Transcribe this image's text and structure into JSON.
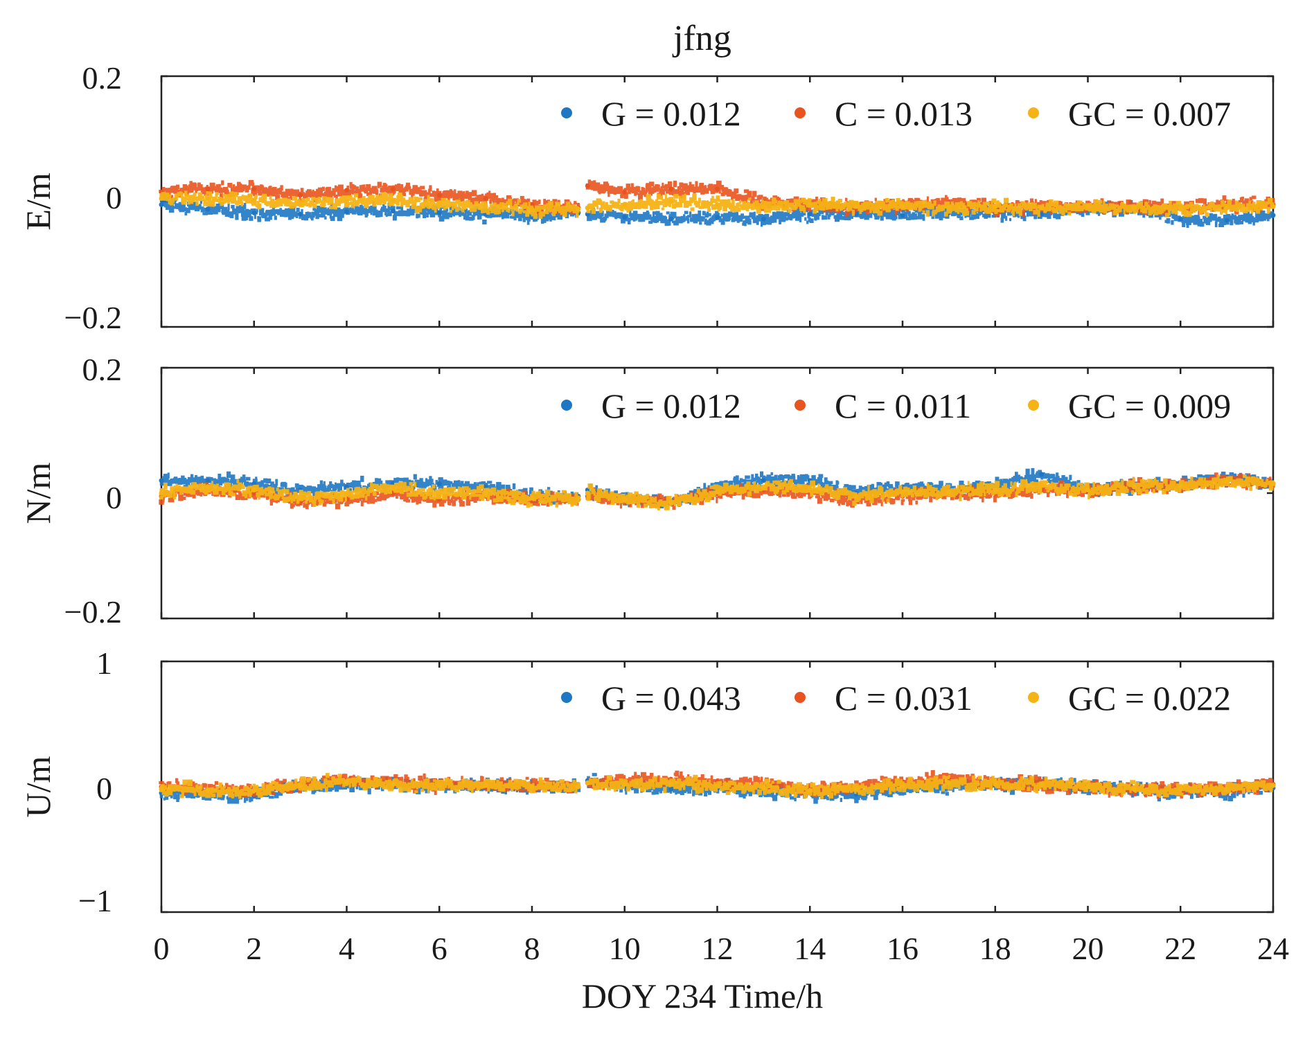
{
  "chart_data": {
    "type": "scatter",
    "title": "jfng",
    "xlabel": "DOY 234 Time/h",
    "xlim": [
      0,
      24
    ],
    "x_ticks": [
      "0",
      "2",
      "4",
      "6",
      "8",
      "10",
      "12",
      "14",
      "16",
      "18",
      "20",
      "22",
      "24"
    ],
    "colors": {
      "G": "#1f77c4",
      "C": "#e8541f",
      "GC": "#f5b316"
    },
    "data_gap_hours": [
      9.0,
      9.2
    ],
    "panels": [
      {
        "ylabel": "E/m",
        "ylim": [
          -0.2,
          0.2
        ],
        "y_ticks": [
          "0.2",
          "0",
          "−0.2"
        ],
        "legend": [
          "G = 0.012",
          "C = 0.013",
          "GC = 0.007"
        ],
        "series": [
          {
            "name": "G",
            "x": [
              0,
              1,
              2,
              3,
              4,
              5,
              6,
              7,
              8,
              9,
              9.2,
              10,
              11,
              12,
              13,
              14,
              15,
              16,
              17,
              18,
              19,
              20,
              21,
              22,
              23,
              24
            ],
            "values": [
              -0.005,
              -0.012,
              -0.018,
              -0.02,
              -0.016,
              -0.015,
              -0.018,
              -0.02,
              -0.025,
              -0.018,
              -0.02,
              -0.025,
              -0.028,
              -0.025,
              -0.028,
              -0.02,
              -0.02,
              -0.022,
              -0.018,
              -0.018,
              -0.02,
              -0.012,
              -0.01,
              -0.028,
              -0.03,
              -0.022
            ]
          },
          {
            "name": "C",
            "x": [
              0,
              1,
              2,
              3,
              4,
              5,
              6,
              7,
              8,
              9,
              9.2,
              10,
              11,
              12,
              13,
              14,
              15,
              16,
              17,
              18,
              19,
              20,
              21,
              22,
              23,
              24
            ],
            "values": [
              0.015,
              0.02,
              0.02,
              0.01,
              0.018,
              0.02,
              0.01,
              0.005,
              -0.005,
              -0.01,
              0.025,
              0.015,
              0.02,
              0.02,
              0.0,
              -0.005,
              -0.01,
              -0.005,
              -0.002,
              -0.01,
              -0.008,
              -0.008,
              -0.01,
              -0.01,
              -0.005,
              -0.005
            ]
          },
          {
            "name": "GC",
            "x": [
              0,
              1,
              2,
              3,
              4,
              5,
              6,
              7,
              8,
              9,
              9.2,
              10,
              11,
              12,
              13,
              14,
              15,
              16,
              17,
              18,
              19,
              20,
              21,
              22,
              23,
              24
            ],
            "values": [
              0.005,
              0.005,
              0.002,
              -0.005,
              0.0,
              0.002,
              -0.005,
              -0.008,
              -0.012,
              -0.012,
              -0.01,
              -0.005,
              0.0,
              -0.005,
              -0.008,
              -0.005,
              -0.008,
              -0.008,
              -0.01,
              -0.008,
              -0.01,
              -0.008,
              -0.01,
              -0.012,
              -0.01,
              -0.008
            ]
          }
        ]
      },
      {
        "ylabel": "N/m",
        "ylim": [
          -0.2,
          0.2
        ],
        "y_ticks": [
          "0.2",
          "0",
          "−0.2"
        ],
        "legend": [
          "G = 0.012",
          "C = 0.011",
          "GC = 0.009"
        ],
        "series": [
          {
            "name": "G",
            "x": [
              0,
              1,
              2,
              3,
              4,
              5,
              6,
              7,
              8,
              9,
              9.2,
              10,
              11,
              12,
              13,
              14,
              15,
              16,
              17,
              18,
              19,
              20,
              21,
              22,
              23,
              24
            ],
            "values": [
              0.02,
              0.02,
              0.015,
              0.005,
              0.01,
              0.015,
              0.015,
              0.01,
              -0.005,
              -0.005,
              0.005,
              -0.01,
              -0.015,
              0.01,
              0.02,
              0.02,
              0.0,
              0.01,
              0.005,
              0.01,
              0.03,
              0.005,
              0.01,
              0.015,
              0.025,
              0.015
            ]
          },
          {
            "name": "C",
            "x": [
              0,
              1,
              2,
              3,
              4,
              5,
              6,
              7,
              8,
              9,
              9.2,
              10,
              11,
              12,
              13,
              14,
              15,
              16,
              17,
              18,
              19,
              20,
              21,
              22,
              23,
              24
            ],
            "values": [
              -0.005,
              0.005,
              0.0,
              -0.015,
              -0.01,
              0.0,
              -0.01,
              -0.005,
              -0.01,
              -0.01,
              -0.005,
              -0.01,
              -0.015,
              0.0,
              0.005,
              0.0,
              -0.01,
              -0.005,
              0.0,
              0.0,
              0.005,
              0.005,
              0.01,
              0.01,
              0.02,
              0.015
            ]
          },
          {
            "name": "GC",
            "x": [
              0,
              1,
              2,
              3,
              4,
              5,
              6,
              7,
              8,
              9,
              9.2,
              10,
              11,
              12,
              13,
              14,
              15,
              16,
              17,
              18,
              19,
              20,
              21,
              22,
              23,
              24
            ],
            "values": [
              0.0,
              0.01,
              0.005,
              -0.008,
              -0.002,
              0.008,
              0.0,
              0.0,
              -0.008,
              -0.008,
              0.0,
              -0.01,
              -0.015,
              0.002,
              0.01,
              0.008,
              -0.005,
              0.002,
              0.002,
              0.004,
              0.012,
              0.005,
              0.01,
              0.012,
              0.018,
              0.015
            ]
          }
        ]
      },
      {
        "ylabel": "U/m",
        "ylim": [
          -1,
          1
        ],
        "y_ticks": [
          "1",
          "0",
          "−1"
        ],
        "legend": [
          "G = 0.043",
          "C = 0.031",
          "GC = 0.022"
        ],
        "series": [
          {
            "name": "G",
            "x": [
              0,
              1,
              2,
              3,
              4,
              5,
              6,
              7,
              8,
              9,
              9.2,
              10,
              11,
              12,
              13,
              14,
              15,
              16,
              17,
              18,
              19,
              20,
              21,
              22,
              23,
              24
            ],
            "values": [
              -0.05,
              -0.06,
              -0.07,
              0.0,
              0.03,
              0.02,
              0.01,
              0.0,
              0.0,
              0.0,
              0.05,
              0.0,
              -0.02,
              -0.01,
              -0.04,
              -0.05,
              -0.06,
              -0.02,
              0.0,
              0.02,
              0.03,
              -0.01,
              -0.02,
              -0.04,
              -0.04,
              -0.01
            ]
          },
          {
            "name": "C",
            "x": [
              0,
              1,
              2,
              3,
              4,
              5,
              6,
              7,
              8,
              9,
              9.2,
              10,
              11,
              12,
              13,
              14,
              15,
              16,
              17,
              18,
              19,
              20,
              21,
              22,
              23,
              24
            ],
            "values": [
              0.0,
              -0.02,
              -0.03,
              0.02,
              0.05,
              0.03,
              0.02,
              0.02,
              0.01,
              0.0,
              0.03,
              0.05,
              0.06,
              0.04,
              0.01,
              -0.02,
              0.0,
              0.04,
              0.06,
              0.03,
              0.02,
              0.0,
              -0.02,
              -0.02,
              -0.01,
              0.02
            ]
          },
          {
            "name": "GC",
            "x": [
              0,
              1,
              2,
              3,
              4,
              5,
              6,
              7,
              8,
              9,
              9.2,
              10,
              11,
              12,
              13,
              14,
              15,
              16,
              17,
              18,
              19,
              20,
              21,
              22,
              23,
              24
            ],
            "values": [
              -0.02,
              -0.03,
              -0.03,
              0.01,
              0.04,
              0.02,
              0.01,
              0.01,
              0.0,
              0.0,
              0.03,
              0.02,
              0.02,
              0.01,
              -0.01,
              -0.03,
              -0.02,
              0.01,
              0.03,
              0.02,
              0.02,
              0.0,
              -0.02,
              -0.02,
              -0.02,
              0.01
            ]
          }
        ]
      }
    ]
  }
}
